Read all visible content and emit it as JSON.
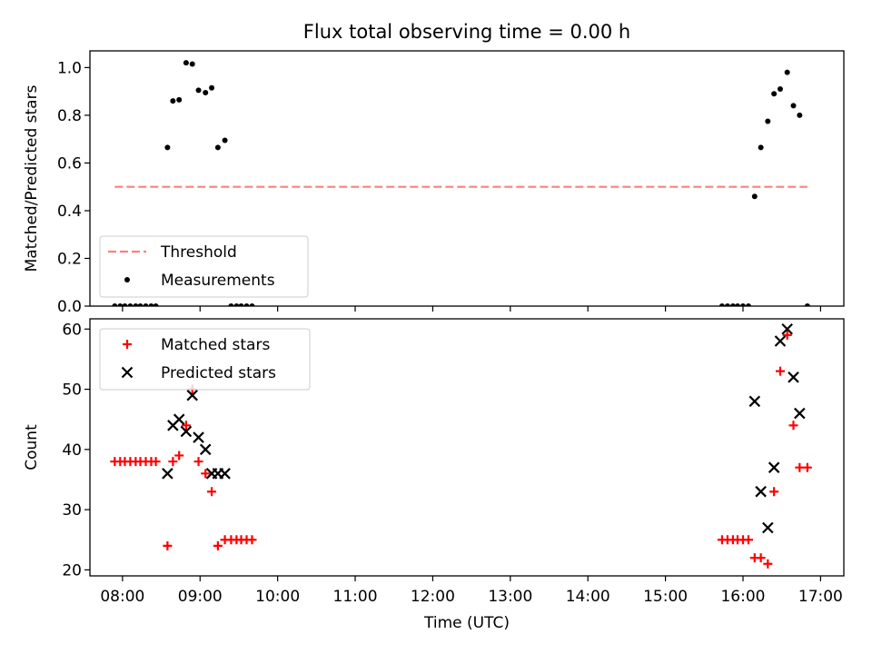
{
  "title": "Flux total observing time = 0.00 h",
  "chart_data": [
    {
      "type": "scatter",
      "ylabel": "Matched/Predicted stars",
      "xlim": [
        7.58,
        17.3
      ],
      "ylim": [
        0,
        1.07
      ],
      "yticks": [
        0.0,
        0.2,
        0.4,
        0.6,
        0.8,
        1.0
      ],
      "ytick_labels": [
        "0.0",
        "0.2",
        "0.4",
        "0.6",
        "0.8",
        "1.0"
      ],
      "grid": false,
      "legend_position": "lower-left",
      "series": [
        {
          "name": "Threshold",
          "kind": "line",
          "style": "dashed",
          "color": "#ff7f7f",
          "points": [
            [
              7.9,
              0.5
            ],
            [
              16.83,
              0.5
            ]
          ]
        },
        {
          "name": "Measurements",
          "kind": "dot",
          "color": "#000000",
          "points": [
            [
              7.9,
              0
            ],
            [
              7.97,
              0
            ],
            [
              8.03,
              0
            ],
            [
              8.1,
              0
            ],
            [
              8.17,
              0
            ],
            [
              8.23,
              0
            ],
            [
              8.3,
              0
            ],
            [
              8.37,
              0
            ],
            [
              8.43,
              0
            ],
            [
              8.58,
              0.665
            ],
            [
              8.65,
              0.86
            ],
            [
              8.73,
              0.865
            ],
            [
              8.82,
              1.02
            ],
            [
              8.9,
              1.015
            ],
            [
              8.98,
              0.905
            ],
            [
              9.07,
              0.895
            ],
            [
              9.15,
              0.915
            ],
            [
              9.23,
              0.665
            ],
            [
              9.32,
              0.695
            ],
            [
              9.4,
              0
            ],
            [
              9.47,
              0
            ],
            [
              9.53,
              0
            ],
            [
              9.6,
              0
            ],
            [
              9.67,
              0
            ],
            [
              15.73,
              0
            ],
            [
              15.8,
              0
            ],
            [
              15.87,
              0
            ],
            [
              15.93,
              0
            ],
            [
              16.0,
              0
            ],
            [
              16.07,
              0
            ],
            [
              16.15,
              0.46
            ],
            [
              16.23,
              0.665
            ],
            [
              16.32,
              0.775
            ],
            [
              16.4,
              0.89
            ],
            [
              16.48,
              0.91
            ],
            [
              16.57,
              0.98
            ],
            [
              16.65,
              0.84
            ],
            [
              16.73,
              0.8
            ],
            [
              16.83,
              0
            ]
          ]
        }
      ]
    },
    {
      "type": "scatter",
      "xlabel": "Time (UTC)",
      "ylabel": "Count",
      "xlim": [
        7.58,
        17.3
      ],
      "ylim": [
        19,
        61.7
      ],
      "yticks": [
        20,
        30,
        40,
        50,
        60
      ],
      "ytick_labels": [
        "20",
        "30",
        "40",
        "50",
        "60"
      ],
      "xticks": [
        8,
        9,
        10,
        11,
        12,
        13,
        14,
        15,
        16,
        17
      ],
      "xtick_labels": [
        "08:00",
        "09:00",
        "10:00",
        "11:00",
        "12:00",
        "13:00",
        "14:00",
        "15:00",
        "16:00",
        "17:00"
      ],
      "grid": false,
      "legend_position": "upper-left",
      "series": [
        {
          "name": "Matched stars",
          "kind": "plus",
          "color": "#ff0000",
          "points": [
            [
              7.9,
              38
            ],
            [
              7.97,
              38
            ],
            [
              8.03,
              38
            ],
            [
              8.1,
              38
            ],
            [
              8.17,
              38
            ],
            [
              8.23,
              38
            ],
            [
              8.3,
              38
            ],
            [
              8.37,
              38
            ],
            [
              8.43,
              38
            ],
            [
              8.58,
              24
            ],
            [
              8.65,
              38
            ],
            [
              8.73,
              39
            ],
            [
              8.82,
              44
            ],
            [
              8.9,
              50
            ],
            [
              8.98,
              38
            ],
            [
              9.07,
              36
            ],
            [
              9.15,
              33
            ],
            [
              9.23,
              24
            ],
            [
              9.32,
              25
            ],
            [
              9.4,
              25
            ],
            [
              9.47,
              25
            ],
            [
              9.53,
              25
            ],
            [
              9.6,
              25
            ],
            [
              9.67,
              25
            ],
            [
              15.73,
              25
            ],
            [
              15.8,
              25
            ],
            [
              15.87,
              25
            ],
            [
              15.93,
              25
            ],
            [
              16.0,
              25
            ],
            [
              16.07,
              25
            ],
            [
              16.15,
              22
            ],
            [
              16.23,
              22
            ],
            [
              16.32,
              21
            ],
            [
              16.4,
              33
            ],
            [
              16.48,
              53
            ],
            [
              16.57,
              59
            ],
            [
              16.65,
              44
            ],
            [
              16.73,
              37
            ],
            [
              16.83,
              37
            ]
          ]
        },
        {
          "name": "Predicted stars",
          "kind": "x",
          "color": "#000000",
          "points": [
            [
              8.58,
              36
            ],
            [
              8.65,
              44
            ],
            [
              8.73,
              45
            ],
            [
              8.82,
              43
            ],
            [
              8.9,
              49
            ],
            [
              8.98,
              42
            ],
            [
              9.07,
              40
            ],
            [
              9.15,
              36
            ],
            [
              9.23,
              36
            ],
            [
              9.32,
              36
            ],
            [
              16.15,
              48
            ],
            [
              16.23,
              33
            ],
            [
              16.32,
              27
            ],
            [
              16.4,
              37
            ],
            [
              16.48,
              58
            ],
            [
              16.57,
              60
            ],
            [
              16.65,
              52
            ],
            [
              16.73,
              46
            ]
          ]
        }
      ]
    }
  ]
}
